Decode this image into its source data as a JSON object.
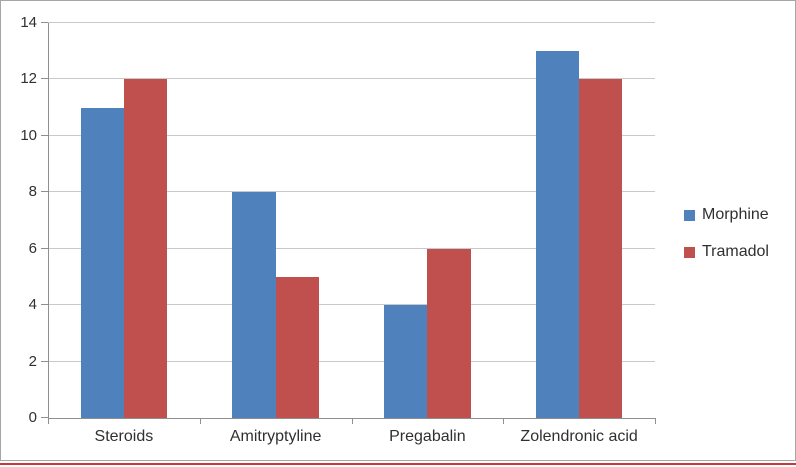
{
  "chart_data": {
    "type": "bar",
    "title": "",
    "xlabel": "",
    "ylabel": "",
    "categories": [
      "Steroids",
      "Amitryptyline",
      "Pregabalin",
      "Zolendronic acid"
    ],
    "series": [
      {
        "name": "Morphine",
        "color": "#4f81bd",
        "values": [
          11,
          8,
          4,
          13
        ]
      },
      {
        "name": "Tramadol",
        "color": "#c0504d",
        "values": [
          12,
          5,
          6,
          12
        ]
      }
    ],
    "ylim": [
      0,
      14
    ],
    "yticks": [
      0,
      2,
      4,
      6,
      8,
      10,
      12,
      14
    ],
    "grid": true,
    "legend_position": "right",
    "gap_width_percent": 150
  },
  "colors": {
    "background": "#ffffff",
    "gridline": "#c9c9c9",
    "axis_line": "#8f8f8f",
    "text": "#303030",
    "frame_border": "#a6a6a6",
    "bottom_rule": "#c53a3a",
    "series_morphine": "#4f81bd",
    "series_tramadol": "#c0504d"
  }
}
